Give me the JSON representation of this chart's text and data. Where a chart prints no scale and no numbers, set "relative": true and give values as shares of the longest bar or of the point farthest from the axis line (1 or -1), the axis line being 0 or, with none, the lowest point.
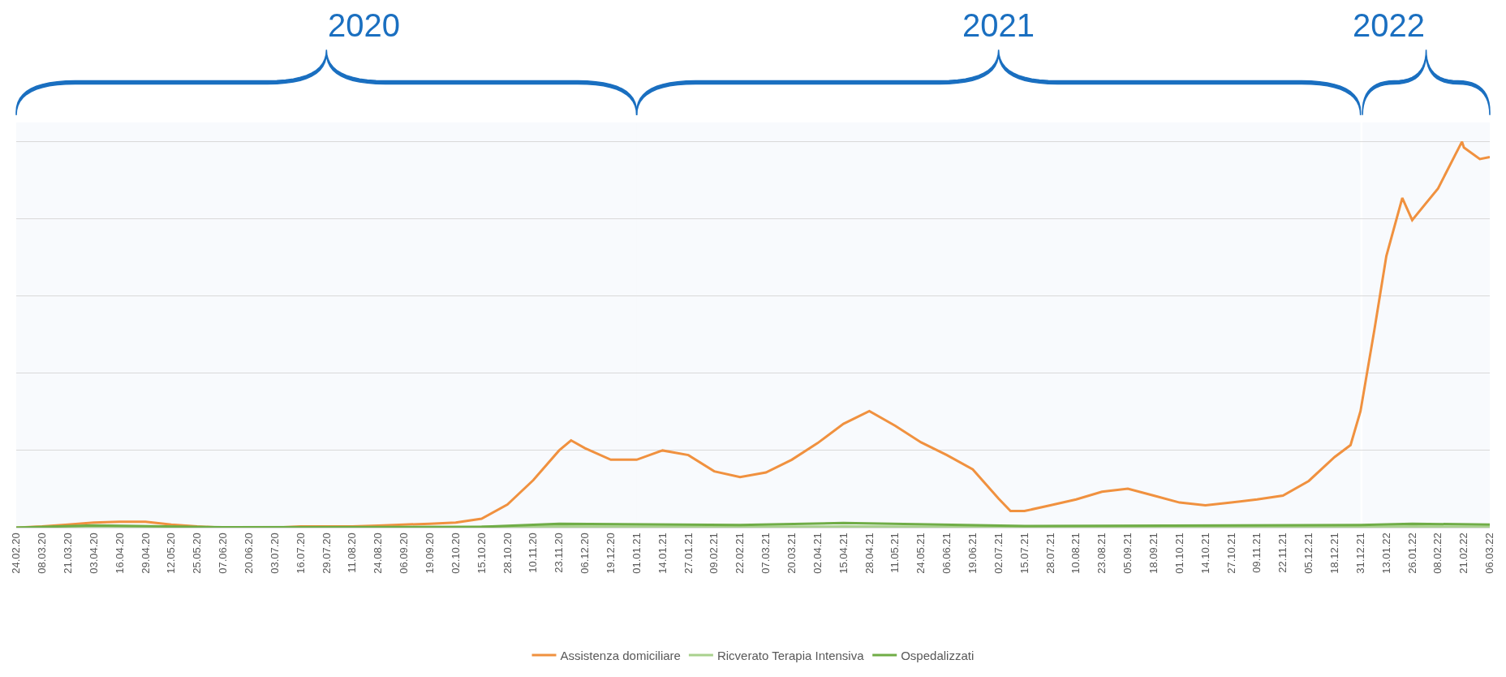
{
  "chart_data": {
    "type": "line",
    "relative": true,
    "grid": "y",
    "legend": "bottom",
    "tick_labels": "x",
    "xlim": [
      "2020-02-24",
      "2022-03-06"
    ],
    "xticks": [
      {
        "value": "2020-02-24",
        "label": "24.02.20"
      },
      {
        "value": "2020-03-08",
        "label": "08.03.20"
      },
      {
        "value": "2020-03-21",
        "label": "21.03.20"
      },
      {
        "value": "2020-04-03",
        "label": "03.04.20"
      },
      {
        "value": "2020-04-16",
        "label": "16.04.20"
      },
      {
        "value": "2020-04-29",
        "label": "29.04.20"
      },
      {
        "value": "2020-05-12",
        "label": "12.05.20"
      },
      {
        "value": "2020-05-25",
        "label": "25.05.20"
      },
      {
        "value": "2020-06-07",
        "label": "07.06.20"
      },
      {
        "value": "2020-06-20",
        "label": "20.06.20"
      },
      {
        "value": "2020-07-03",
        "label": "03.07.20"
      },
      {
        "value": "2020-07-16",
        "label": "16.07.20"
      },
      {
        "value": "2020-07-29",
        "label": "29.07.20"
      },
      {
        "value": "2020-08-11",
        "label": "11.08.20"
      },
      {
        "value": "2020-08-24",
        "label": "24.08.20"
      },
      {
        "value": "2020-09-06",
        "label": "06.09.20"
      },
      {
        "value": "2020-09-19",
        "label": "19.09.20"
      },
      {
        "value": "2020-10-02",
        "label": "02.10.20"
      },
      {
        "value": "2020-10-15",
        "label": "15.10.20"
      },
      {
        "value": "2020-10-28",
        "label": "28.10.20"
      },
      {
        "value": "2020-11-10",
        "label": "10.11.20"
      },
      {
        "value": "2020-11-23",
        "label": "23.11.20"
      },
      {
        "value": "2020-12-06",
        "label": "06.12.20"
      },
      {
        "value": "2020-12-19",
        "label": "19.12.20"
      },
      {
        "value": "2021-01-01",
        "label": "01.01.21"
      },
      {
        "value": "2021-01-14",
        "label": "14.01.21"
      },
      {
        "value": "2021-01-27",
        "label": "27.01.21"
      },
      {
        "value": "2021-02-09",
        "label": "09.02.21"
      },
      {
        "value": "2021-02-22",
        "label": "22.02.21"
      },
      {
        "value": "2021-03-07",
        "label": "07.03.21"
      },
      {
        "value": "2021-03-20",
        "label": "20.03.21"
      },
      {
        "value": "2021-04-02",
        "label": "02.04.21"
      },
      {
        "value": "2021-04-15",
        "label": "15.04.21"
      },
      {
        "value": "2021-04-28",
        "label": "28.04.21"
      },
      {
        "value": "2021-05-11",
        "label": "11.05.21"
      },
      {
        "value": "2021-05-24",
        "label": "24.05.21"
      },
      {
        "value": "2021-06-06",
        "label": "06.06.21"
      },
      {
        "value": "2021-06-19",
        "label": "19.06.21"
      },
      {
        "value": "2021-07-02",
        "label": "02.07.21"
      },
      {
        "value": "2021-07-15",
        "label": "15.07.21"
      },
      {
        "value": "2021-07-28",
        "label": "28.07.21"
      },
      {
        "value": "2021-08-10",
        "label": "10.08.21"
      },
      {
        "value": "2021-08-23",
        "label": "23.08.21"
      },
      {
        "value": "2021-09-05",
        "label": "05.09.21"
      },
      {
        "value": "2021-09-18",
        "label": "18.09.21"
      },
      {
        "value": "2021-10-01",
        "label": "01.10.21"
      },
      {
        "value": "2021-10-14",
        "label": "14.10.21"
      },
      {
        "value": "2021-10-27",
        "label": "27.10.21"
      },
      {
        "value": "2021-11-09",
        "label": "09.11.21"
      },
      {
        "value": "2021-11-22",
        "label": "22.11.21"
      },
      {
        "value": "2021-12-05",
        "label": "05.12.21"
      },
      {
        "value": "2021-12-18",
        "label": "18.12.21"
      },
      {
        "value": "2021-12-31",
        "label": "31.12.21"
      },
      {
        "value": "2022-01-13",
        "label": "13.01.22"
      },
      {
        "value": "2022-01-26",
        "label": "26.01.22"
      },
      {
        "value": "2022-02-08",
        "label": "08.02.22"
      },
      {
        "value": "2022-02-21",
        "label": "21.02.22"
      },
      {
        "value": "2022-03-06",
        "label": "06.03.22"
      }
    ],
    "bands": [
      {
        "axis": "x",
        "from": "2020-02-24",
        "to": "2021-01-01",
        "label": "2020",
        "color": "#1a6fc0"
      },
      {
        "axis": "x",
        "from": "2021-01-01",
        "to": "2021-12-31",
        "label": "2021",
        "color": "#1a6fc0"
      },
      {
        "axis": "x",
        "from": "2022-01-01",
        "to": "2022-03-06",
        "label": "2022",
        "color": "#1a6fc0"
      }
    ],
    "series": [
      {
        "name": "Assistenza domiciliare",
        "color": "#f0913f",
        "x": [
          "2020-02-24",
          "2020-03-08",
          "2020-03-21",
          "2020-04-03",
          "2020-04-16",
          "2020-04-29",
          "2020-05-12",
          "2020-05-25",
          "2020-06-07",
          "2020-06-20",
          "2020-07-03",
          "2020-07-16",
          "2020-07-29",
          "2020-08-11",
          "2020-08-24",
          "2020-09-06",
          "2020-09-19",
          "2020-10-02",
          "2020-10-15",
          "2020-10-28",
          "2020-11-10",
          "2020-11-23",
          "2020-11-29",
          "2020-12-06",
          "2020-12-19",
          "2021-01-01",
          "2021-01-14",
          "2021-01-27",
          "2021-02-09",
          "2021-02-22",
          "2021-03-07",
          "2021-03-20",
          "2021-04-02",
          "2021-04-15",
          "2021-04-28",
          "2021-05-11",
          "2021-05-24",
          "2021-06-06",
          "2021-06-19",
          "2021-07-02",
          "2021-07-08",
          "2021-07-15",
          "2021-07-28",
          "2021-08-10",
          "2021-08-23",
          "2021-09-05",
          "2021-09-18",
          "2021-10-01",
          "2021-10-14",
          "2021-10-27",
          "2021-11-09",
          "2021-11-22",
          "2021-12-05",
          "2021-12-18",
          "2021-12-26",
          "2021-12-31",
          "2022-01-07",
          "2022-01-13",
          "2022-01-21",
          "2022-01-26",
          "2022-02-08",
          "2022-02-20",
          "2022-02-21",
          "2022-03-01",
          "2022-03-06"
        ],
        "values": [
          0,
          0.003,
          0.008,
          0.013,
          0.015,
          0.015,
          0.008,
          0.003,
          0,
          0,
          0,
          0.003,
          0.003,
          0.003,
          0.005,
          0.008,
          0.01,
          0.013,
          0.023,
          0.06,
          0.123,
          0.2,
          0.226,
          0.206,
          0.176,
          0.176,
          0.2,
          0.188,
          0.146,
          0.131,
          0.143,
          0.176,
          0.219,
          0.269,
          0.302,
          0.264,
          0.221,
          0.188,
          0.151,
          0.075,
          0.043,
          0.043,
          0.058,
          0.073,
          0.093,
          0.101,
          0.083,
          0.065,
          0.058,
          0.065,
          0.073,
          0.083,
          0.121,
          0.183,
          0.214,
          0.302,
          0.513,
          0.704,
          0.854,
          0.797,
          0.879,
          1,
          0.985,
          0.955,
          0.96
        ]
      },
      {
        "name": "Ricverato Terapia Intensiva",
        "color": "#a9d18e",
        "x": [
          "2020-02-24",
          "2020-04-03",
          "2020-06-07",
          "2020-11-23",
          "2021-02-22",
          "2021-04-15",
          "2021-07-15",
          "2021-12-31",
          "2022-01-26",
          "2022-03-06"
        ],
        "values": [
          0,
          0.003,
          0,
          0.003,
          0.002,
          0.003,
          0.001,
          0.002,
          0.003,
          0.002
        ]
      },
      {
        "name": "Ospedalizzati",
        "color": "#70ad47",
        "x": [
          "2020-02-24",
          "2020-04-03",
          "2020-06-07",
          "2020-10-15",
          "2020-11-23",
          "2021-02-22",
          "2021-04-15",
          "2021-07-15",
          "2021-12-31",
          "2022-01-26",
          "2022-03-06"
        ],
        "values": [
          0,
          0.006,
          0.001,
          0.002,
          0.01,
          0.007,
          0.012,
          0.004,
          0.007,
          0.01,
          0.008
        ]
      }
    ]
  }
}
